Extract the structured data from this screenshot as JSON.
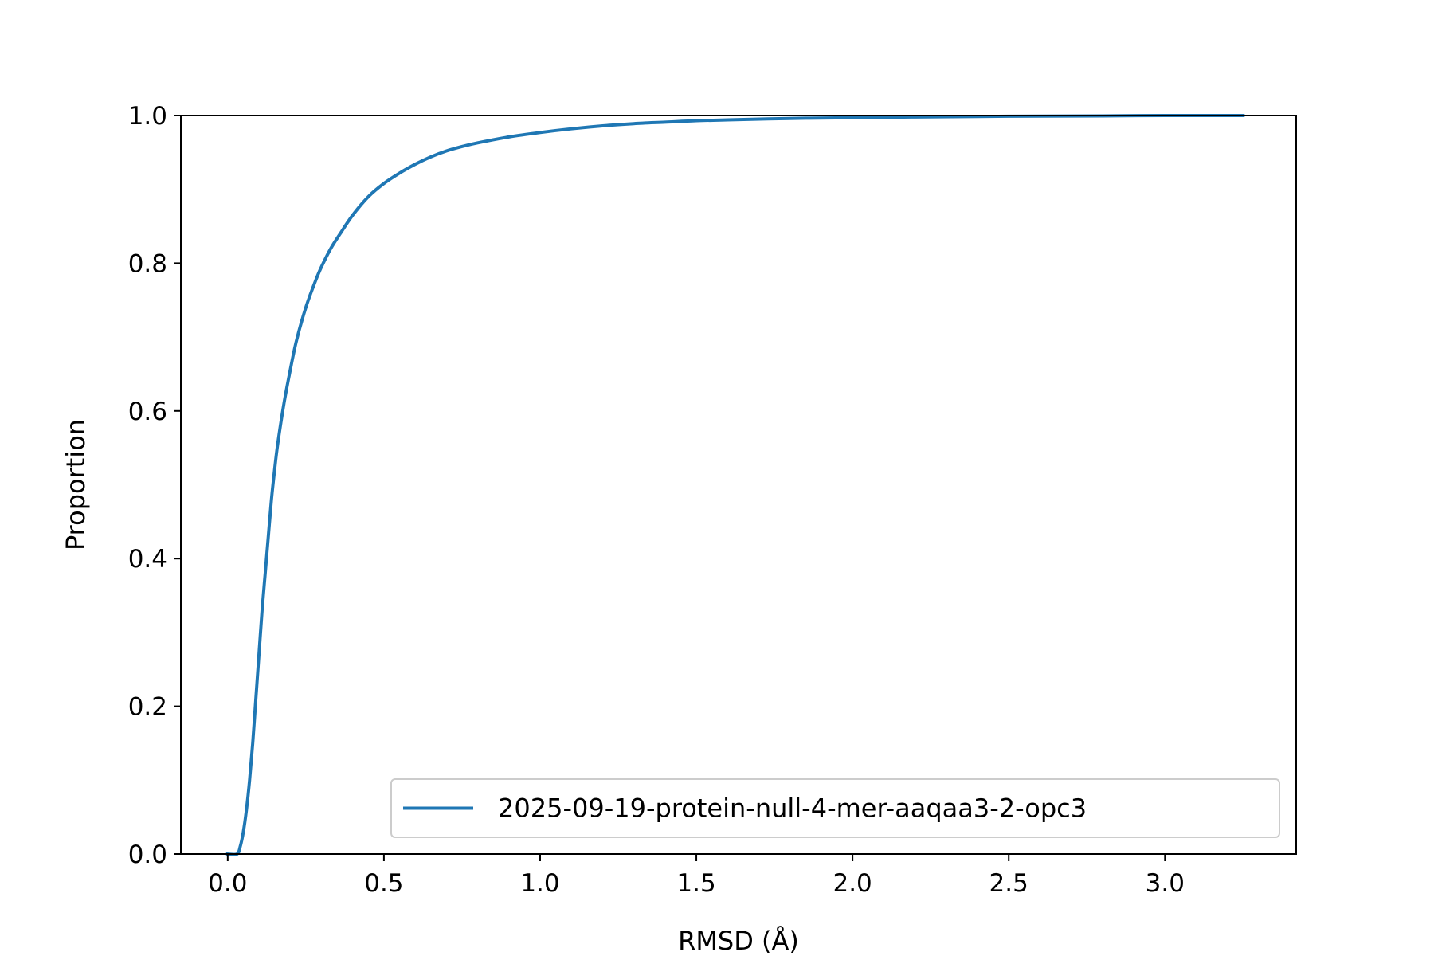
{
  "chart_data": {
    "type": "line",
    "title": "",
    "xlabel": "RMSD (Å)",
    "ylabel": "Proportion",
    "xlim": [
      -0.15,
      3.42
    ],
    "ylim": [
      0.0,
      1.0
    ],
    "xticks": [
      "0.0",
      "0.5",
      "1.0",
      "1.5",
      "2.0",
      "2.5",
      "3.0"
    ],
    "yticks": [
      "0.0",
      "0.2",
      "0.4",
      "0.6",
      "0.8",
      "1.0"
    ],
    "grid": false,
    "legend_position": "lower-right",
    "series": [
      {
        "name": "2025-09-19-protein-null-4-mer-aaqaa3-2-opc3",
        "color": "#1f77b4",
        "x": [
          0.0,
          0.03,
          0.04,
          0.05,
          0.06,
          0.07,
          0.08,
          0.09,
          0.1,
          0.11,
          0.12,
          0.13,
          0.14,
          0.15,
          0.16,
          0.18,
          0.2,
          0.22,
          0.25,
          0.28,
          0.3,
          0.33,
          0.36,
          0.4,
          0.45,
          0.5,
          0.55,
          0.6,
          0.65,
          0.7,
          0.75,
          0.8,
          0.9,
          1.0,
          1.1,
          1.2,
          1.3,
          1.4,
          1.5,
          1.6,
          1.8,
          2.0,
          2.2,
          2.5,
          2.8,
          3.0,
          3.25
        ],
        "y": [
          0.0,
          0.0,
          0.01,
          0.03,
          0.06,
          0.1,
          0.15,
          0.21,
          0.27,
          0.33,
          0.38,
          0.43,
          0.48,
          0.52,
          0.555,
          0.61,
          0.655,
          0.695,
          0.74,
          0.775,
          0.795,
          0.82,
          0.84,
          0.865,
          0.89,
          0.908,
          0.922,
          0.934,
          0.944,
          0.952,
          0.958,
          0.963,
          0.971,
          0.977,
          0.982,
          0.986,
          0.989,
          0.991,
          0.993,
          0.994,
          0.996,
          0.997,
          0.998,
          0.999,
          0.9995,
          1.0,
          1.0
        ]
      }
    ]
  }
}
